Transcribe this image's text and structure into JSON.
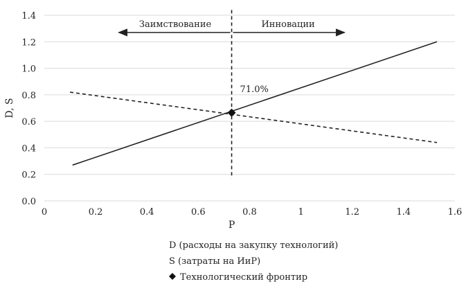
{
  "chart_data": {
    "type": "line",
    "xlabel": "P",
    "ylabel": "D, S",
    "xlim": [
      0,
      1.6
    ],
    "ylim": [
      0,
      1.4
    ],
    "x_ticks": [
      "0",
      "0.2",
      "0.4",
      "0.6",
      "0.8",
      "1",
      "1.2",
      "1.4",
      "1.6"
    ],
    "y_ticks": [
      "0.0",
      "0.2",
      "0.4",
      "0.6",
      "0.8",
      "1.0",
      "1.2",
      "1.4"
    ],
    "grid": "horizontal",
    "series": [
      {
        "name": "D (расходы на закупку технологий)",
        "style": "dashed",
        "color": "#222222",
        "points": [
          [
            0.1,
            0.82
          ],
          [
            1.53,
            0.44
          ]
        ]
      },
      {
        "name": "S (затраты на ИиР)",
        "style": "solid",
        "color": "#222222",
        "points": [
          [
            0.11,
            0.27
          ],
          [
            1.53,
            1.2
          ]
        ]
      }
    ],
    "frontier": {
      "name": "Технологический фронтир",
      "x": 0.73,
      "y": 0.665,
      "label": "71.0%",
      "vline_y": [
        0.17,
        1.44
      ]
    },
    "annotations": {
      "left_label": "Заимствование",
      "right_label": "Инновации",
      "arrow_y": 1.27,
      "arrow_x_left": 0.29,
      "arrow_x_right": 1.17
    },
    "legend_position": "bottom-center"
  }
}
